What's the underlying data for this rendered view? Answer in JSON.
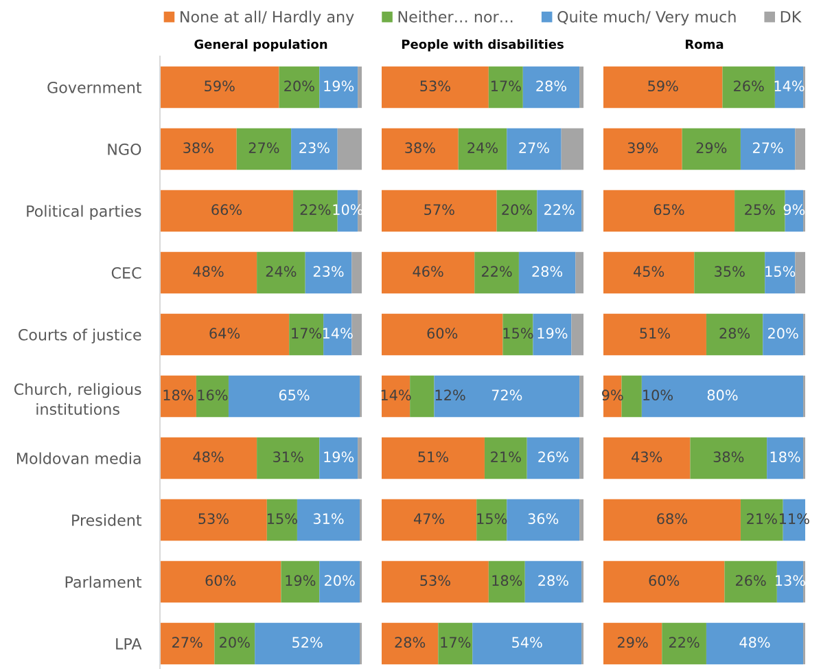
{
  "chart_data": [
    {
      "type": "bar",
      "title": "General population",
      "orientation": "horizontal",
      "stacked": true,
      "legend": "top",
      "tick_labels": "y",
      "xlim": [
        0,
        100
      ],
      "categories": [
        "Government",
        "NGO",
        "Political parties",
        "CEC",
        "Courts of justice",
        "Church, religious\ninstitutions",
        "Moldovan media",
        "President",
        "Parlament",
        "LPA"
      ],
      "series": [
        {
          "name": "None at all/ Hardly any",
          "color": "#ed7d31",
          "values": [
            59,
            38,
            66,
            48,
            64,
            18,
            48,
            53,
            60,
            27
          ],
          "value_labels": [
            "59%",
            "38%",
            "66%",
            "48%",
            "64%",
            "18%",
            "48%",
            "53%",
            "60%",
            "27%"
          ]
        },
        {
          "name": "Neither… nor…",
          "color": "#70ad47",
          "values": [
            20,
            27,
            22,
            24,
            17,
            16,
            31,
            15,
            19,
            20
          ],
          "value_labels": [
            "20%",
            "27%",
            "22%",
            "24%",
            "17%",
            "16%",
            "31%",
            "15%",
            "19%",
            "20%"
          ]
        },
        {
          "name": "Quite much/ Very much",
          "color": "#5b9bd5",
          "values": [
            19,
            23,
            10,
            23,
            14,
            65,
            19,
            31,
            20,
            52
          ],
          "value_labels": [
            "19%",
            "23%",
            "10%",
            "23%",
            "14%",
            "65%",
            "19%",
            "31%",
            "20%",
            "52%"
          ]
        },
        {
          "name": "DK",
          "color": "#a5a5a5",
          "values": [
            2,
            12,
            2,
            5,
            5,
            1,
            2,
            1,
            1,
            1
          ]
        }
      ]
    },
    {
      "type": "bar",
      "title": "People with disabilities",
      "orientation": "horizontal",
      "stacked": true,
      "xlim": [
        0,
        100
      ],
      "categories": [
        null,
        null,
        null,
        null,
        null,
        null,
        null,
        null,
        null,
        null
      ],
      "series": [
        {
          "color": "#ed7d31",
          "values": [
            53,
            38,
            57,
            46,
            60,
            14,
            51,
            47,
            53,
            28
          ],
          "value_labels": [
            "53%",
            "38%",
            "57%",
            "46%",
            "60%",
            "14%",
            "51%",
            "47%",
            "53%",
            "28%"
          ]
        },
        {
          "color": "#70ad47",
          "values": [
            17,
            24,
            20,
            22,
            15,
            12,
            21,
            15,
            18,
            17
          ],
          "value_labels": [
            "17%",
            "24%",
            "20%",
            "22%",
            "15%",
            "12%",
            "21%",
            "15%",
            "18%",
            "17%"
          ]
        },
        {
          "color": "#5b9bd5",
          "values": [
            28,
            27,
            22,
            28,
            19,
            72,
            26,
            36,
            28,
            54
          ],
          "value_labels": [
            "28%",
            "27%",
            "22%",
            "28%",
            "19%",
            "72%",
            "26%",
            "36%",
            "28%",
            "54%"
          ]
        },
        {
          "color": "#a5a5a5",
          "values": [
            2,
            11,
            1,
            4,
            6,
            2,
            2,
            2,
            1,
            1
          ]
        }
      ]
    },
    {
      "type": "bar",
      "title": "Roma",
      "orientation": "horizontal",
      "stacked": true,
      "xlim": [
        0,
        100
      ],
      "categories": [
        null,
        null,
        null,
        null,
        null,
        null,
        null,
        null,
        null,
        null
      ],
      "series": [
        {
          "color": "#ed7d31",
          "values": [
            59,
            39,
            65,
            45,
            51,
            9,
            43,
            68,
            60,
            29
          ],
          "value_labels": [
            "59%",
            "39%",
            "65%",
            "45%",
            "51%",
            "9%",
            "43%",
            "68%",
            "60%",
            "29%"
          ]
        },
        {
          "color": "#70ad47",
          "values": [
            26,
            29,
            25,
            35,
            28,
            10,
            38,
            21,
            26,
            22
          ],
          "value_labels": [
            "26%",
            "29%",
            "25%",
            "35%",
            "28%",
            "10%",
            "38%",
            "21%",
            "26%",
            "22%"
          ]
        },
        {
          "color": "#5b9bd5",
          "values": [
            14,
            27,
            9,
            15,
            20,
            80,
            18,
            11,
            13,
            48
          ],
          "value_labels": [
            "14%",
            "27%",
            "9%",
            "15%",
            "20%",
            "80%",
            "18%",
            "11%",
            "13%",
            "48%"
          ]
        },
        {
          "color": "#a5a5a5",
          "values": [
            1,
            5,
            1,
            5,
            1,
            1,
            1,
            0,
            1,
            1
          ]
        }
      ]
    }
  ]
}
